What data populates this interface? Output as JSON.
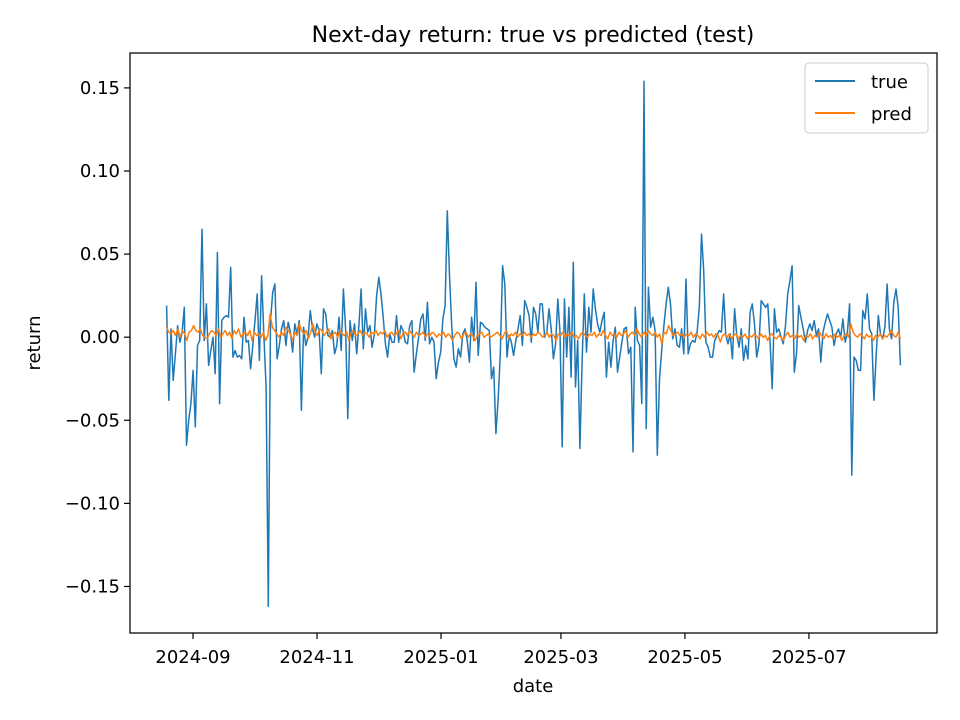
{
  "chart_data": {
    "type": "line",
    "title": "Next-day return: true vs predicted (test)",
    "xlabel": "date",
    "ylabel": "return",
    "x_start": "2024-08-19",
    "x_end": "2025-08-15",
    "xlim": [
      "2024-08-01",
      "2025-09-02"
    ],
    "ylim": [
      -0.178,
      0.171
    ],
    "x_ticks": [
      {
        "date": "2024-09-01",
        "label": "2024-09"
      },
      {
        "date": "2024-11-01",
        "label": "2024-11"
      },
      {
        "date": "2025-01-01",
        "label": "2025-01"
      },
      {
        "date": "2025-03-01",
        "label": "2025-03"
      },
      {
        "date": "2025-05-01",
        "label": "2025-05"
      },
      {
        "date": "2025-07-01",
        "label": "2025-07"
      }
    ],
    "y_ticks": [
      {
        "value": 0.15,
        "label": "0.15"
      },
      {
        "value": 0.1,
        "label": "0.10"
      },
      {
        "value": 0.05,
        "label": "0.05"
      },
      {
        "value": 0.0,
        "label": "0.00"
      },
      {
        "value": -0.05,
        "label": "−0.05"
      },
      {
        "value": -0.1,
        "label": "−0.10"
      },
      {
        "value": -0.15,
        "label": "−0.15"
      }
    ],
    "grid": false,
    "legend_position": "top-right",
    "series": [
      {
        "name": "true",
        "color": "#1f77b4",
        "values": [
          0.019,
          -0.038,
          0.005,
          -0.026,
          -0.01,
          0.007,
          -0.003,
          0.003,
          0.018,
          -0.065,
          -0.05,
          -0.04,
          -0.02,
          -0.054,
          -0.005,
          -0.002,
          0.065,
          -0.002,
          0.02,
          -0.017,
          -0.008,
          0.0,
          -0.022,
          0.051,
          -0.04,
          0.01,
          0.012,
          0.013,
          0.012,
          0.042,
          -0.012,
          -0.008,
          -0.012,
          -0.011,
          -0.013,
          0.012,
          -0.003,
          -0.002,
          -0.019,
          -0.005,
          0.01,
          0.026,
          -0.014,
          0.037,
          0.002,
          -0.03,
          -0.162,
          0.01,
          0.027,
          0.032,
          -0.013,
          -0.005,
          0.005,
          0.01,
          -0.005,
          0.009,
          0.003,
          -0.009,
          0.008,
          0.002,
          0.01,
          -0.044,
          0.006,
          -0.005,
          -0.0,
          0.016,
          0.005,
          0.0,
          0.008,
          0.004,
          -0.022,
          0.017,
          0.014,
          0.001,
          0.0,
          0.004,
          -0.01,
          -0.005,
          0.012,
          -0.008,
          0.029,
          0.005,
          -0.049,
          0.01,
          -0.002,
          0.008,
          -0.01,
          0.007,
          0.029,
          -0.007,
          0.017,
          0.003,
          0.007,
          -0.006,
          0.002,
          0.025,
          0.036,
          0.026,
          0.012,
          -0.004,
          -0.012,
          0.002,
          -0.003,
          -0.003,
          0.013,
          -0.003,
          0.007,
          0.004,
          -0.003,
          -0.004,
          0.007,
          0.01,
          -0.021,
          -0.01,
          0.0,
          0.011,
          0.014,
          -0.002,
          0.021,
          -0.004,
          -0.0,
          -0.003,
          -0.025,
          -0.015,
          -0.009,
          0.011,
          0.019,
          0.076,
          0.037,
          0.007,
          -0.013,
          -0.018,
          -0.007,
          -0.012,
          0.002,
          0.005,
          -0.002,
          -0.015,
          0.012,
          -0.002,
          0.033,
          -0.011,
          0.009,
          0.008,
          0.006,
          0.005,
          0.004,
          -0.025,
          -0.018,
          -0.058,
          -0.038,
          -0.01,
          0.043,
          0.032,
          -0.012,
          0.001,
          -0.003,
          -0.011,
          -0.002,
          0.005,
          0.013,
          -0.005,
          0.022,
          0.018,
          0.013,
          -0.003,
          0.018,
          0.014,
          0.003,
          0.02,
          0.02,
          0.0,
          0.003,
          0.017,
          0.005,
          -0.013,
          -0.004,
          0.023,
          0.003,
          -0.066,
          0.023,
          -0.012,
          0.018,
          -0.024,
          0.045,
          -0.03,
          -0.002,
          -0.067,
          -0.015,
          0.026,
          -0.009,
          0.018,
          0.003,
          0.029,
          0.017,
          0.008,
          0.003,
          0.01,
          0.015,
          -0.024,
          -0.003,
          -0.018,
          -0.002,
          0.006,
          -0.021,
          -0.012,
          -0.003,
          0.005,
          0.006,
          -0.01,
          -0.006,
          -0.069,
          0.018,
          -0.002,
          -0.005,
          -0.04,
          0.154,
          -0.055,
          0.03,
          0.006,
          0.012,
          0.004,
          -0.071,
          -0.025,
          -0.008,
          0.007,
          0.02,
          0.03,
          0.02,
          -0.001,
          0.005,
          -0.005,
          -0.006,
          0.005,
          -0.01,
          0.035,
          -0.01,
          -0.004,
          -0.002,
          -0.003,
          0.003,
          0.018,
          0.062,
          0.04,
          -0.003,
          -0.006,
          -0.012,
          -0.012,
          -0.002,
          0.001,
          0.004,
          0.003,
          0.026,
          0.001,
          -0.004,
          0.002,
          -0.013,
          0.017,
          0.001,
          -0.006,
          0.005,
          -0.014,
          -0.005,
          -0.013,
          0.015,
          0.02,
          0.008,
          -0.012,
          -0.004,
          0.022,
          0.02,
          0.018,
          0.02,
          -0.002,
          -0.031,
          0.017,
          0.003,
          0.005,
          0.0,
          -0.004,
          0.007,
          0.026,
          0.034,
          0.043,
          -0.021,
          -0.01,
          0.019,
          0.012,
          0.005,
          -0.003,
          0.004,
          0.008,
          0.004,
          0.01,
          0.001,
          0.005,
          -0.015,
          0.003,
          0.009,
          0.014,
          0.01,
          0.006,
          -0.005,
          0.002,
          0.005,
          0.0,
          0.011,
          -0.003,
          0.003,
          0.02,
          -0.083,
          -0.012,
          -0.014,
          -0.02,
          -0.02,
          0.016,
          0.011,
          0.026,
          0.005,
          0.002,
          -0.038,
          -0.012,
          0.013,
          0.002,
          -0.001,
          0.006,
          0.032,
          0.005,
          -0.001,
          0.021,
          0.029,
          0.018,
          -0.017
        ],
        "note_only": false
      },
      {
        "name": "pred",
        "color": "#ff7f0e",
        "values": [
          0.006,
          0.003,
          0.002,
          0.004,
          0.001,
          0.005,
          0.0,
          0.004,
          0.002,
          -0.002,
          0.003,
          0.004,
          0.007,
          0.004,
          0.003,
          0.005,
          0.001,
          0.0,
          -0.001,
          0.002,
          0.004,
          0.003,
          0.001,
          0.005,
          0.0,
          0.002,
          0.004,
          0.001,
          0.003,
          -0.001,
          0.004,
          0.002,
          0.005,
          0.0,
          0.002,
          0.003,
          0.001,
          0.004,
          -0.002,
          0.003,
          0.001,
          0.002,
          0.0,
          0.003,
          -0.002,
          0.001,
          0.014,
          0.006,
          0.004,
          0.002,
          0.0,
          0.003,
          0.001,
          0.006,
          0.004,
          0.002,
          -0.002,
          0.003,
          0.001,
          0.008,
          0.004,
          0.002,
          0.004,
          -0.001,
          0.003,
          0.008,
          0.003,
          0.001,
          0.005,
          0.004,
          0.001,
          0.003,
          0.005,
          -0.001,
          0.002,
          0.003,
          0.0,
          0.004,
          0.002,
          0.001,
          0.003,
          -0.002,
          0.003,
          0.004,
          0.001,
          0.002,
          0.004,
          0.001,
          0.003,
          0.002,
          0.0,
          0.003,
          0.002,
          0.004,
          0.001,
          0.003,
          0.002,
          0.004,
          0.0,
          0.002,
          0.003,
          0.001,
          0.002,
          0.004,
          -0.001,
          0.002,
          0.003,
          0.001,
          0.004,
          0.002,
          0.0,
          0.003,
          0.001,
          0.002,
          0.003,
          0.0,
          0.002,
          0.001,
          0.003,
          0.002,
          0.0,
          0.002,
          0.001,
          0.003,
          0.0,
          0.002,
          0.001,
          -0.002,
          0.001,
          0.003,
          0.002,
          -0.001,
          0.002,
          0.003,
          0.0,
          0.002,
          0.001,
          -0.002,
          0.001,
          0.002,
          0.003,
          0.0,
          0.001,
          0.002,
          0.0,
          0.001,
          0.002,
          0.003,
          0.001,
          -0.001,
          0.002,
          0.004,
          -0.001,
          0.002,
          0.001,
          0.003,
          0.0,
          0.002,
          0.001,
          0.003,
          0.001,
          0.002,
          0.0,
          0.002,
          0.001,
          0.003,
          0.002,
          0.0,
          0.001,
          0.003,
          0.0,
          0.002,
          0.001,
          -0.002,
          0.002,
          0.001,
          0.003,
          0.0,
          0.002,
          0.001,
          0.003,
          0.0,
          0.001,
          -0.001,
          0.002,
          0.003,
          0.001,
          0.0,
          0.002,
          0.001,
          0.003,
          0.0,
          0.002,
          0.001,
          0.004,
          0.001,
          -0.001,
          0.003,
          0.001,
          0.002,
          0.0,
          0.003,
          0.001,
          0.002,
          0.004,
          0.0,
          0.002,
          0.003,
          0.001,
          0.005,
          0.002,
          0.0,
          0.003,
          0.001,
          0.004,
          0.002,
          0.001,
          0.003,
          0.0,
          0.002,
          -0.004,
          0.003,
          0.002,
          0.007,
          0.004,
          0.001,
          0.002,
          0.003,
          0.001,
          0.002,
          0.0,
          0.002,
          0.001,
          0.003,
          0.0,
          0.002,
          0.001,
          -0.001,
          0.002,
          0.0,
          0.003,
          0.001,
          0.002,
          0.0,
          0.002,
          0.001,
          -0.003,
          0.001,
          0.002,
          0.0,
          0.002,
          -0.001,
          0.001,
          0.002,
          -0.001,
          0.001,
          0.0,
          0.002,
          -0.001,
          0.001,
          0.0,
          0.002,
          0.001,
          -0.001,
          0.002,
          0.0,
          0.001,
          -0.002,
          0.001,
          0.002,
          0.0,
          -0.001,
          0.001,
          0.0,
          -0.002,
          0.001,
          0.003,
          0.0,
          0.001,
          -0.001,
          0.002,
          0.0,
          0.001,
          -0.002,
          0.001,
          0.0,
          0.002,
          -0.001,
          0.001,
          0.0,
          0.003,
          0.001,
          -0.001,
          0.002,
          0.0,
          0.001,
          -0.001,
          0.002,
          0.0,
          0.001,
          -0.002,
          0.001,
          0.002,
          0.0,
          0.008,
          0.003,
          0.001,
          0.0,
          0.002,
          0.001,
          -0.001,
          0.002,
          0.0,
          0.001,
          -0.002,
          0.001,
          0.0,
          0.002,
          -0.001,
          0.001,
          0.0,
          0.002,
          0.004,
          0.001,
          0.0,
          0.003,
          -0.001
        ],
        "note_only": false
      }
    ]
  }
}
